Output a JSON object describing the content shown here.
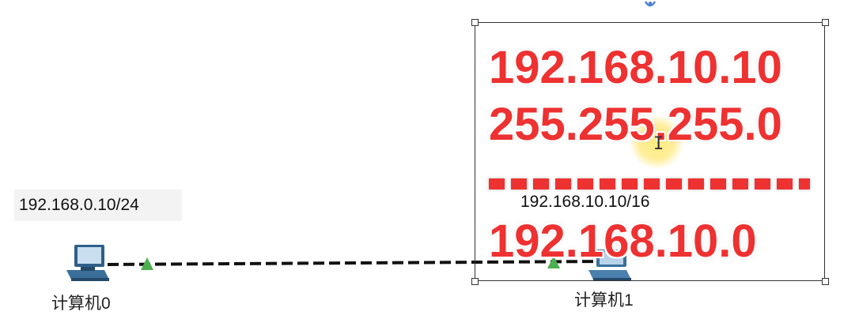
{
  "canvas": {
    "pc0": {
      "name": "计算机0",
      "ip_label": "192.168.0.10/24"
    },
    "pc1": {
      "name": "计算机1",
      "ip_label": "192.168.10.10/16"
    },
    "annotation": {
      "line1": "192.168.10.10",
      "line2": "255.255.255.0",
      "line4": "192.168.10.0"
    },
    "link": {
      "status_color": "#4caf50",
      "cable_color": "#111111",
      "style": "dashed"
    }
  },
  "colors": {
    "annotation_red": "#ee3131",
    "label_bg": "#f3f3f3"
  },
  "icons": [
    "pc-icon",
    "link-up-triangle-icon",
    "swirl-icon",
    "text-cursor-icon"
  ]
}
